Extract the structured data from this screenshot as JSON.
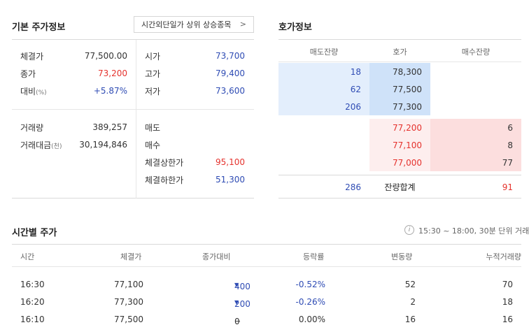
{
  "basic": {
    "title": "기본 주가정보",
    "link_label": "시간외단일가 상위 상승종목",
    "link_chevron": ">",
    "left_top": [
      {
        "label": "체결가",
        "sub": "",
        "value": "77,500.00",
        "color": "normal"
      },
      {
        "label": "종가",
        "sub": "",
        "value": "73,200",
        "color": "red"
      },
      {
        "label": "대비",
        "sub": "(%)",
        "value": "+5.87%",
        "color": "blue"
      }
    ],
    "right_top": [
      {
        "label": "시가",
        "value": "73,700",
        "color": "blue"
      },
      {
        "label": "고가",
        "value": "79,400",
        "color": "blue"
      },
      {
        "label": "저가",
        "value": "73,600",
        "color": "blue"
      }
    ],
    "left_bottom": [
      {
        "label": "거래량",
        "sub": "",
        "value": "389,257"
      },
      {
        "label": "거래대금",
        "sub": "(천)",
        "value": "30,194,846"
      }
    ],
    "right_bottom": [
      {
        "label": "매도",
        "value": "",
        "color": "normal"
      },
      {
        "label": "매수",
        "value": "",
        "color": "normal"
      },
      {
        "label": "체결상한가",
        "value": "95,100",
        "color": "red"
      },
      {
        "label": "체결하한가",
        "value": "51,300",
        "color": "blue"
      }
    ]
  },
  "orderbook": {
    "title": "호가정보",
    "headers": [
      "매도잔량",
      "호가",
      "매수잔량"
    ],
    "asks": [
      {
        "qty": "18",
        "price": "78,300"
      },
      {
        "qty": "62",
        "price": "77,500"
      },
      {
        "qty": "206",
        "price": "77,300"
      }
    ],
    "bids": [
      {
        "price": "77,200",
        "qty": "6"
      },
      {
        "price": "77,100",
        "qty": "8"
      },
      {
        "price": "77,000",
        "qty": "77"
      }
    ],
    "footer": {
      "ask_total": "286",
      "label": "잔량합계",
      "bid_total": "91"
    }
  },
  "timetable": {
    "title": "시간별 주가",
    "info_icon": "i",
    "info": "15:30 ~ 18:00, 30분 단위 거래",
    "headers": [
      "시간",
      "체결가",
      "종가대비",
      "등락률",
      "변동량",
      "누적거래량"
    ],
    "rows": [
      {
        "time": "16:30",
        "price": "77,100",
        "change_dir": "down",
        "arrow": "▼",
        "change": "400",
        "rate": "-0.52%",
        "volume": "52",
        "cum": "70"
      },
      {
        "time": "16:20",
        "price": "77,300",
        "change_dir": "down",
        "arrow": "▼",
        "change": "200",
        "rate": "-0.26%",
        "volume": "2",
        "cum": "18"
      },
      {
        "time": "16:10",
        "price": "77,500",
        "change_dir": "flat",
        "arrow": "−",
        "change": "0",
        "rate": "0.00%",
        "volume": "16",
        "cum": "16"
      }
    ]
  }
}
